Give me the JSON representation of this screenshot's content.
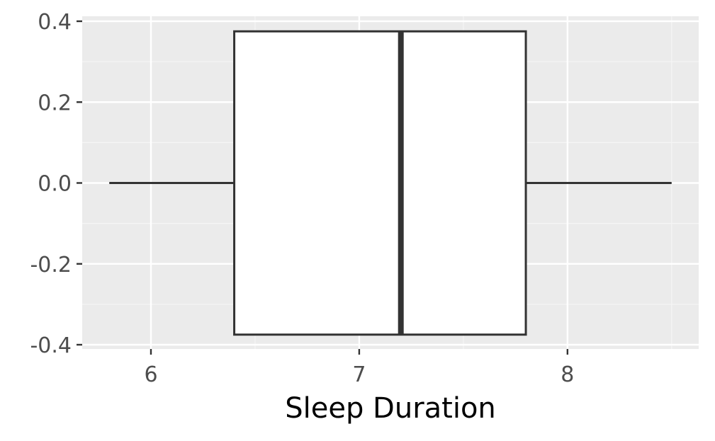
{
  "chart_data": {
    "type": "boxplot",
    "title": "",
    "xlabel": "Sleep Duration",
    "ylabel": "",
    "xlim": [
      5.67,
      8.63
    ],
    "ylim": [
      -0.4,
      0.4
    ],
    "x_ticks": [
      6,
      7,
      8
    ],
    "x_tick_labels": [
      "6",
      "7",
      "8"
    ],
    "y_ticks": [
      0.4,
      0.2,
      0.0,
      -0.2,
      -0.4
    ],
    "y_tick_labels": [
      "0.4",
      "0.2",
      "0.0",
      "-0.2",
      "-0.4"
    ],
    "box": {
      "min": 5.8,
      "q1": 6.4,
      "median": 7.2,
      "q3": 7.8,
      "max": 8.5,
      "y_center": 0.0,
      "half_width": 0.375
    },
    "grid": true,
    "legend": "none",
    "colors": {
      "panel_background": "#ebebeb",
      "grid_major": "#ffffff",
      "grid_minor": "#f5f5f5",
      "box_fill": "#ffffff",
      "box_stroke": "#333333",
      "tick_label": "#4d4d4d",
      "axis_title": "#000000"
    }
  }
}
